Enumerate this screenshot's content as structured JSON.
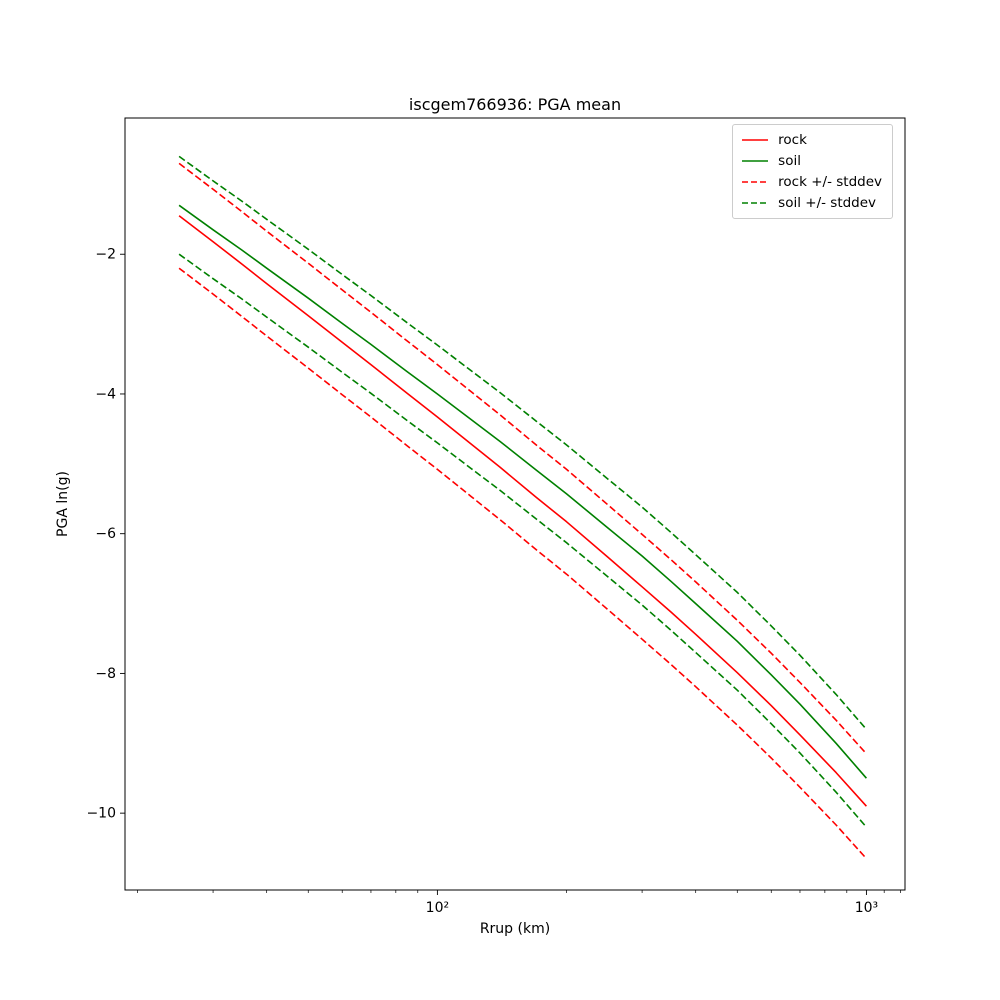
{
  "chart_data": {
    "type": "line",
    "title": "iscgem766936: PGA mean",
    "xlabel": "Rrup (km)",
    "ylabel": "PGA ln(g)",
    "xscale": "log",
    "yscale": "linear",
    "xlim": [
      18.7,
      1230
    ],
    "ylim": [
      -11.1,
      -0.05
    ],
    "grid": false,
    "x": [
      25,
      30,
      35,
      40,
      50,
      60,
      70,
      85,
      100,
      120,
      140,
      170,
      200,
      250,
      300,
      350,
      400,
      500,
      600,
      700,
      850,
      1000
    ],
    "series": [
      {
        "name": "rock",
        "color": "#ff0000",
        "style": "solid",
        "stddev": 0.75,
        "values": [
          -1.45,
          -1.82,
          -2.14,
          -2.42,
          -2.88,
          -3.26,
          -3.58,
          -3.99,
          -4.33,
          -4.72,
          -5.05,
          -5.48,
          -5.83,
          -6.34,
          -6.76,
          -7.12,
          -7.44,
          -7.99,
          -8.46,
          -8.88,
          -9.42,
          -9.9
        ]
      },
      {
        "name": "soil",
        "color": "#008000",
        "style": "solid",
        "stddev": 0.7,
        "values": [
          -1.3,
          -1.65,
          -1.94,
          -2.2,
          -2.63,
          -2.99,
          -3.29,
          -3.68,
          -4.0,
          -4.37,
          -4.68,
          -5.09,
          -5.43,
          -5.92,
          -6.32,
          -6.68,
          -7.0,
          -7.54,
          -8.02,
          -8.44,
          -9.0,
          -9.5
        ]
      }
    ],
    "stddev_bands": [
      {
        "name": "rock +/- stddev",
        "base": "rock",
        "color": "#ff0000",
        "style": "dashed"
      },
      {
        "name": "soil +/- stddev",
        "base": "soil",
        "color": "#008000",
        "style": "dashed"
      }
    ],
    "xticks": [
      {
        "value": 100,
        "label": "10²"
      },
      {
        "value": 1000,
        "label": "10³"
      }
    ],
    "xminorticks": [
      20,
      30,
      40,
      50,
      60,
      70,
      80,
      90,
      200,
      300,
      400,
      500,
      600,
      700,
      800,
      900,
      1100,
      1200
    ],
    "yticks": [
      {
        "value": -2,
        "label": "−2"
      },
      {
        "value": -4,
        "label": "−4"
      },
      {
        "value": -6,
        "label": "−6"
      },
      {
        "value": -8,
        "label": "−8"
      },
      {
        "value": -10,
        "label": "−10"
      }
    ],
    "legend": {
      "position": "upper right",
      "entries": [
        {
          "label": "rock",
          "color": "#ff0000",
          "dashed": false
        },
        {
          "label": "soil",
          "color": "#008000",
          "dashed": false
        },
        {
          "label": "rock +/- stddev",
          "color": "#ff0000",
          "dashed": true
        },
        {
          "label": "soil +/- stddev",
          "color": "#008000",
          "dashed": true
        }
      ]
    }
  }
}
